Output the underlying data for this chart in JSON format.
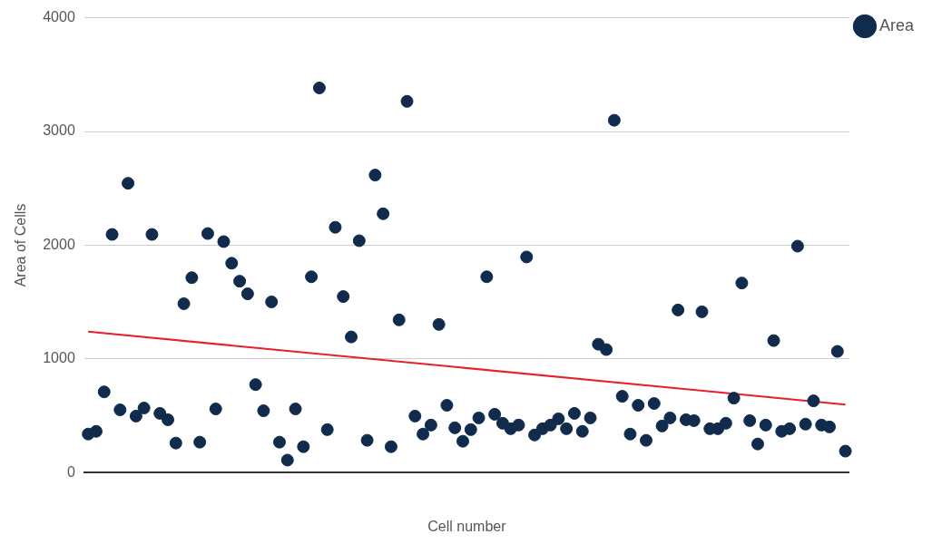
{
  "chart_data": {
    "type": "scatter",
    "xlabel": "Cell number",
    "ylabel": "Area of Cells",
    "categories": [
      null,
      null,
      null,
      null,
      null,
      null,
      null,
      null,
      null,
      null,
      null,
      null,
      null,
      null,
      null,
      null,
      null,
      null,
      null,
      null,
      null,
      null,
      null,
      null,
      null,
      null,
      null,
      null,
      null,
      null,
      null,
      null,
      null,
      null,
      null,
      null,
      null,
      null,
      null,
      null,
      null,
      null,
      null,
      null,
      null,
      null,
      null,
      null,
      null,
      null,
      null,
      null,
      null,
      null,
      null,
      null,
      null,
      null,
      null,
      null,
      null,
      null,
      null,
      null,
      null,
      null,
      null,
      null,
      null,
      null,
      null,
      null,
      null,
      null,
      null,
      null,
      null,
      null,
      null,
      null,
      null,
      null,
      null,
      null,
      null,
      null,
      null,
      null,
      null,
      null,
      null,
      null,
      null,
      null,
      null,
      null
    ],
    "series": [
      {
        "name": "Area",
        "color": "#102b4c",
        "values": [
          340,
          364,
          711,
          2095,
          553,
          2545,
          498,
          569,
          2095,
          522,
          466,
          261,
          1486,
          1715,
          269,
          2103,
          561,
          2032,
          1842,
          1684,
          1573,
          775,
          545,
          1502,
          269,
          111,
          561,
          229,
          1723,
          3383,
          379,
          2158,
          1549,
          1194,
          2040,
          285,
          2617,
          2277,
          229,
          1344,
          3265,
          498,
          340,
          419,
          1304,
          593,
          395,
          277,
          379,
          482,
          1723,
          514,
          435,
          387,
          419,
          1897,
          332,
          387,
          419,
          474,
          387,
          522,
          364,
          482,
          1130,
          1083,
          3099,
          672,
          340,
          593,
          285,
          609,
          411,
          482,
          1431,
          466,
          458,
          1415,
          387,
          387,
          435,
          656,
          1668,
          458,
          253,
          419,
          1162,
          364,
          387,
          1992,
          427,
          632,
          419,
          403,
          1067,
          190
        ]
      },
      {
        "type": "line",
        "marker": "none",
        "color": "#e8202a",
        "values": [
          1240,
          null,
          null,
          null,
          null,
          null,
          null,
          null,
          null,
          null,
          null,
          null,
          null,
          null,
          null,
          null,
          null,
          null,
          null,
          null,
          null,
          null,
          null,
          null,
          null,
          null,
          null,
          null,
          null,
          null,
          null,
          null,
          null,
          null,
          null,
          null,
          null,
          null,
          null,
          null,
          null,
          null,
          null,
          null,
          null,
          null,
          null,
          null,
          null,
          null,
          null,
          null,
          null,
          null,
          null,
          null,
          null,
          null,
          null,
          null,
          null,
          null,
          null,
          null,
          null,
          null,
          null,
          null,
          null,
          null,
          null,
          null,
          null,
          null,
          null,
          null,
          null,
          null,
          null,
          null,
          null,
          null,
          null,
          null,
          null,
          null,
          null,
          null,
          null,
          null,
          null,
          null,
          null,
          null,
          null,
          600
        ]
      }
    ],
    "ylim": [
      0,
      4000
    ],
    "yticks": [
      0,
      1000,
      2000,
      3000,
      4000
    ],
    "grid": "y",
    "legend": "top right",
    "marker": "circle"
  }
}
